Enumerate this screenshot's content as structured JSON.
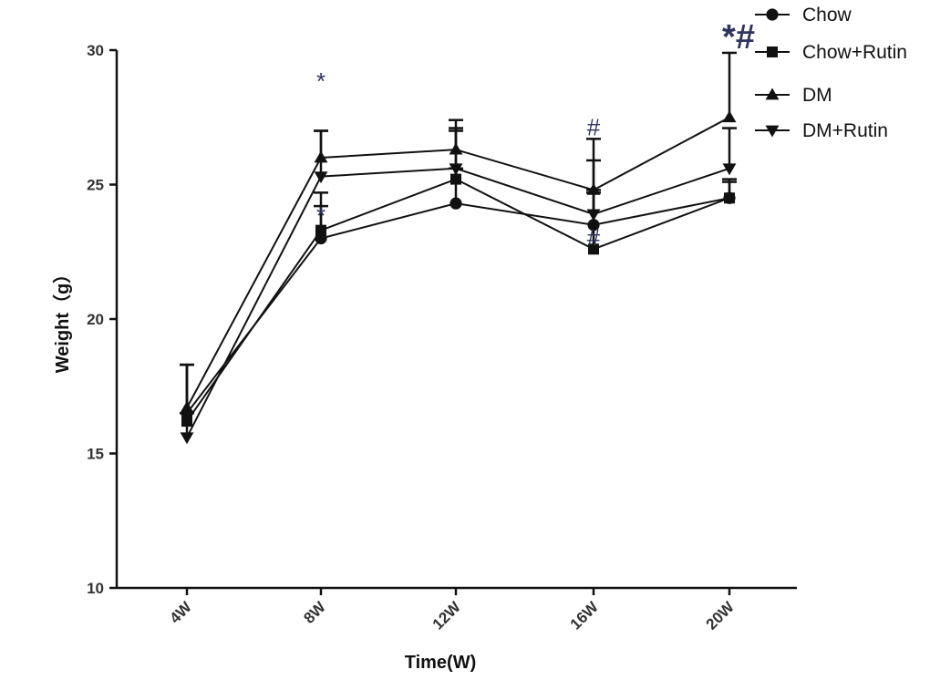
{
  "chart_data": {
    "type": "line",
    "xlabel": "Time(W)",
    "ylabel": "Weight（g）",
    "ylim": [
      10,
      30
    ],
    "yticks": [
      10,
      15,
      20,
      25,
      30
    ],
    "categories": [
      "4W",
      "8W",
      "12W",
      "16W",
      "20W"
    ],
    "series": [
      {
        "name": "Chow",
        "marker": "circle",
        "values": [
          16.5,
          23.0,
          24.3,
          23.5,
          24.5
        ],
        "err": [
          1.8,
          1.2,
          1.3,
          1.3,
          0.6
        ]
      },
      {
        "name": "Chow+Rutin",
        "marker": "square",
        "values": [
          16.2,
          23.3,
          25.2,
          22.6,
          24.5
        ],
        "err": [
          2.1,
          1.4,
          1.8,
          2.1,
          0.7
        ]
      },
      {
        "name": "DM",
        "marker": "triangle-up",
        "values": [
          16.7,
          26.0,
          26.3,
          24.8,
          27.5
        ],
        "err": [
          1.6,
          1.0,
          1.1,
          1.1,
          2.4
        ]
      },
      {
        "name": "DM+Rutin",
        "marker": "triangle-down",
        "values": [
          15.6,
          25.3,
          25.6,
          23.9,
          25.6
        ],
        "err": [
          0.9,
          1.7,
          1.5,
          2.8,
          1.5
        ]
      }
    ],
    "annotations": [
      {
        "text": "*",
        "category": "8W",
        "value": 28.4,
        "size": "small"
      },
      {
        "text": "*",
        "category": "8W",
        "value": 23.4,
        "size": "small"
      },
      {
        "text": "#",
        "category": "16W",
        "value": 26.7,
        "size": "small"
      },
      {
        "text": "#",
        "category": "16W",
        "value": 22.6,
        "size": "small"
      },
      {
        "text": "*#",
        "category": "20W",
        "value": 30.0,
        "size": "large"
      }
    ],
    "legend_position": "top-right"
  }
}
